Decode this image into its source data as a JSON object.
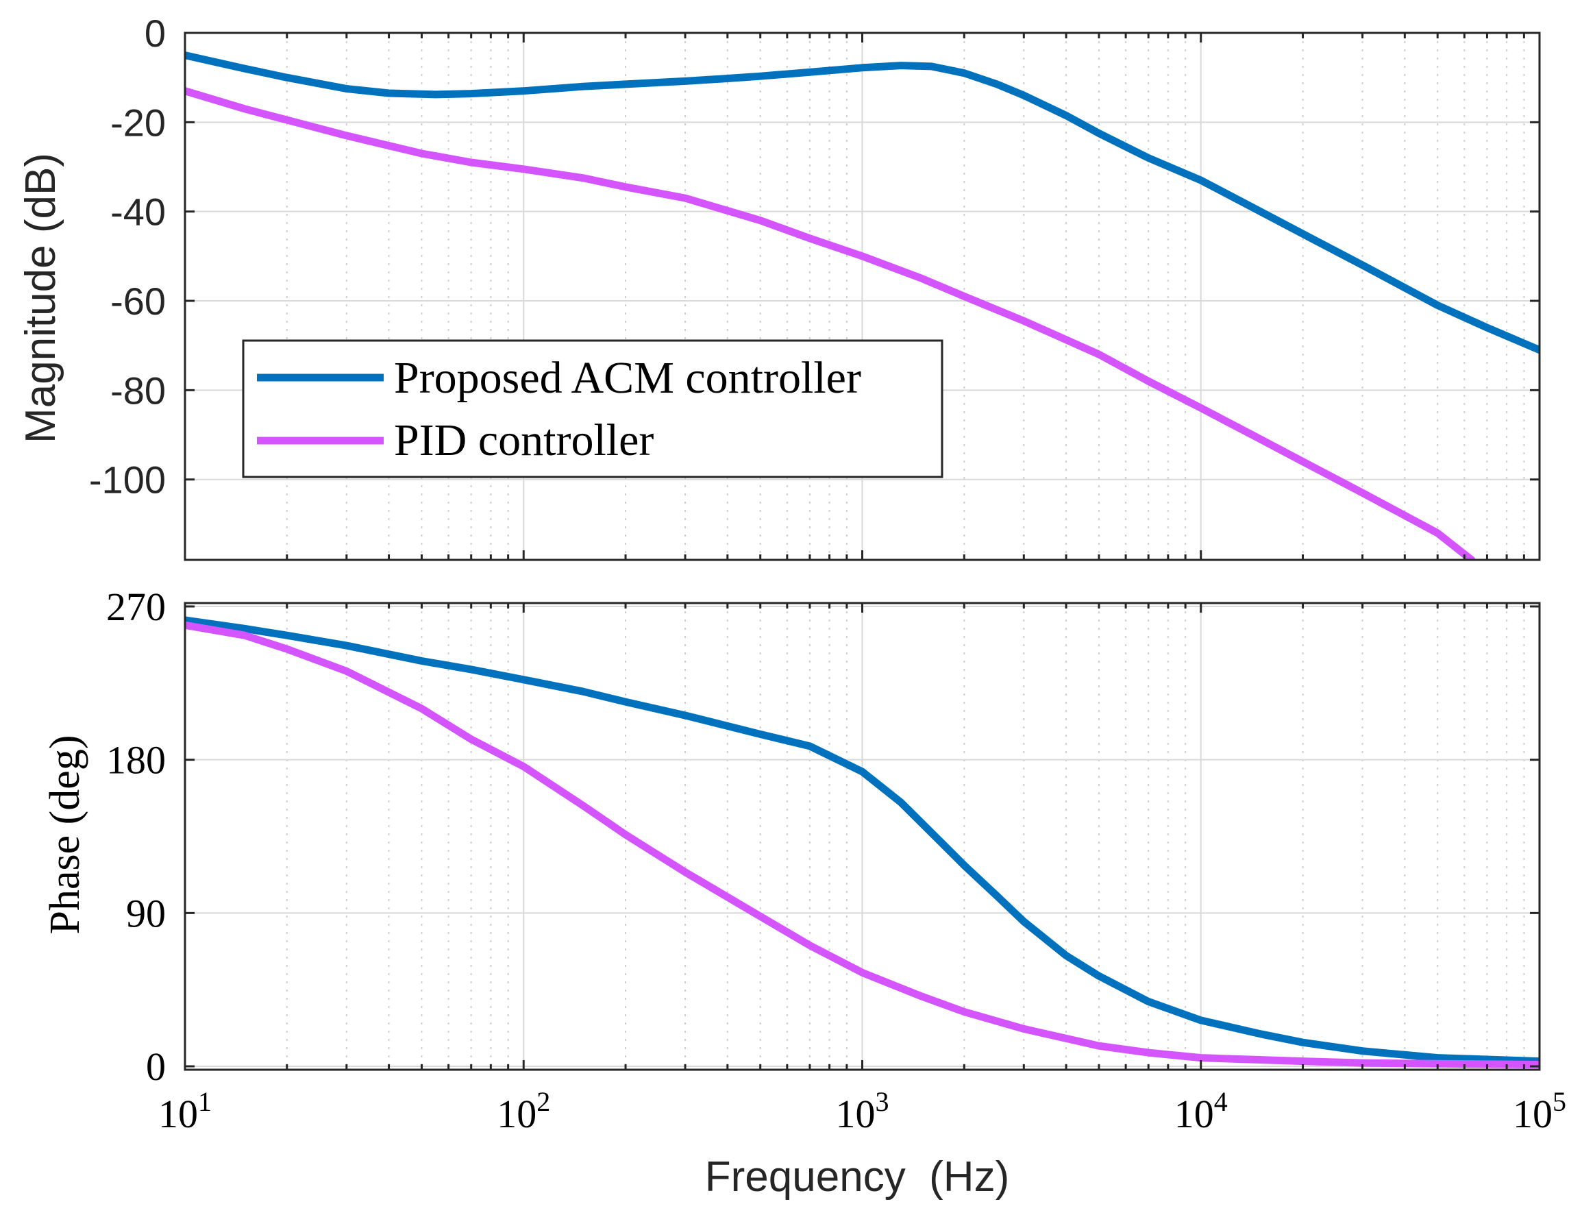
{
  "chart_data": [
    {
      "type": "line",
      "panel": "magnitude",
      "ylabel": "Magnitude (dB)",
      "xscale": "log",
      "xlim": [
        10,
        100000
      ],
      "ylim": [
        -118,
        0
      ],
      "yticks": [
        0,
        -20,
        -40,
        -60,
        -80,
        -100
      ],
      "ytick_labels": [
        "0",
        "-20",
        "-40",
        "-60",
        "-80",
        "-100"
      ],
      "grid": true,
      "legend_position": "lower-left",
      "series": [
        {
          "name": "Proposed ACM controller",
          "color": "#0072BD",
          "x": [
            10,
            15,
            20,
            30,
            40,
            55,
            70,
            100,
            150,
            200,
            300,
            400,
            500,
            700,
            1000,
            1300,
            1600,
            2000,
            2500,
            3000,
            4000,
            5000,
            7000,
            10000,
            15000,
            20000,
            30000,
            50000,
            70000,
            100000
          ],
          "y": [
            -5,
            -8,
            -10,
            -12.5,
            -13.5,
            -13.8,
            -13.6,
            -13,
            -12,
            -11.5,
            -10.8,
            -10.2,
            -9.7,
            -8.8,
            -7.8,
            -7.3,
            -7.5,
            -9,
            -11.5,
            -14,
            -18.5,
            -22.5,
            -28,
            -33,
            -40,
            -45,
            -52,
            -61,
            -66,
            -71
          ]
        },
        {
          "name": "PID controller",
          "color": "#D455FF",
          "x": [
            10,
            15,
            20,
            30,
            50,
            70,
            100,
            150,
            200,
            300,
            500,
            700,
            1000,
            1500,
            2000,
            3000,
            5000,
            7000,
            10000,
            15000,
            20000,
            30000,
            50000,
            63000
          ],
          "y": [
            -13,
            -17,
            -19.5,
            -23,
            -27,
            -29,
            -30.5,
            -32.5,
            -34.5,
            -37,
            -42,
            -46,
            -50,
            -55,
            -59,
            -64.5,
            -72,
            -78,
            -84,
            -91,
            -96,
            -103,
            -112,
            -118
          ]
        }
      ],
      "legend": [
        "Proposed ACM controller",
        "PID controller"
      ]
    },
    {
      "type": "line",
      "panel": "phase",
      "ylabel": "Phase (deg)",
      "xlabel": "Frequency  (Hz)",
      "xscale": "log",
      "xlim": [
        10,
        100000
      ],
      "ylim": [
        -2,
        272
      ],
      "yticks": [
        0,
        90,
        180,
        270
      ],
      "ytick_labels": [
        "0",
        "90",
        "180",
        "270"
      ],
      "xticks": [
        10,
        100,
        1000,
        10000,
        100000
      ],
      "xtick_labels": [
        {
          "base": "10",
          "exp": "1"
        },
        {
          "base": "10",
          "exp": "2"
        },
        {
          "base": "10",
          "exp": "3"
        },
        {
          "base": "10",
          "exp": "4"
        },
        {
          "base": "10",
          "exp": "5"
        }
      ],
      "grid": true,
      "series": [
        {
          "name": "Proposed ACM controller",
          "color": "#0072BD",
          "x": [
            10,
            15,
            20,
            30,
            50,
            70,
            100,
            150,
            200,
            300,
            500,
            700,
            1000,
            1300,
            1700,
            2000,
            2500,
            3000,
            4000,
            5000,
            7000,
            10000,
            15000,
            20000,
            30000,
            50000,
            100000
          ],
          "y": [
            262,
            257,
            253,
            247,
            238,
            233,
            227,
            220,
            214,
            206,
            195,
            188,
            173,
            155,
            132,
            118,
            100,
            85,
            65,
            53,
            38,
            27,
            19,
            14,
            9,
            5,
            3
          ]
        },
        {
          "name": "PID controller",
          "color": "#D455FF",
          "x": [
            10,
            15,
            20,
            30,
            50,
            70,
            100,
            150,
            200,
            300,
            500,
            700,
            1000,
            1500,
            2000,
            3000,
            5000,
            7000,
            10000,
            20000,
            30000,
            50000,
            100000
          ],
          "y": [
            259,
            253,
            245,
            232,
            210,
            192,
            176,
            153,
            136,
            114,
            88,
            71,
            55,
            41,
            32,
            22,
            12,
            8,
            5,
            3,
            2,
            1.5,
            1
          ]
        }
      ]
    }
  ]
}
